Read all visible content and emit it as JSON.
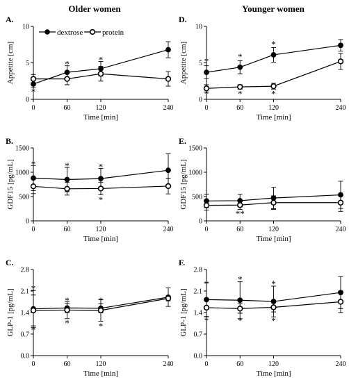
{
  "columns": [
    "Older women",
    "Younger women"
  ],
  "legend": {
    "items": [
      "dextrose",
      "protein"
    ]
  },
  "chart_data": [
    {
      "panel": "A.",
      "type": "line",
      "ylabel": "Appetite [cm]",
      "xlabel": "Time [min]",
      "x": [
        0,
        60,
        120,
        240
      ],
      "x_ticks": [
        "0",
        "60",
        "120",
        "240"
      ],
      "ylim": [
        0,
        10
      ],
      "y_ticks": [
        "0",
        "5",
        "10"
      ],
      "series": [
        {
          "name": "dextrose",
          "marker": "filled",
          "values": [
            2.1,
            3.7,
            4.2,
            6.8
          ],
          "errors": [
            0.5,
            0.9,
            1.0,
            1.1
          ]
        },
        {
          "name": "protein",
          "marker": "open",
          "values": [
            2.8,
            2.8,
            3.5,
            2.8
          ],
          "errors": [
            0.6,
            0.8,
            1.0,
            1.0
          ]
        }
      ],
      "annotations": [
        {
          "text": "*",
          "x": 0,
          "y": 1.1
        },
        {
          "text": "*",
          "x": 60,
          "y": 4.9
        },
        {
          "text": "*",
          "x": 120,
          "y": 5.5
        }
      ]
    },
    {
      "panel": "B.",
      "type": "line",
      "ylabel": "GDF15 [pg/mL]",
      "xlabel": "Time [min]",
      "x": [
        0,
        60,
        120,
        240
      ],
      "x_ticks": [
        "0",
        "60",
        "120",
        "240"
      ],
      "ylim": [
        0,
        1500
      ],
      "y_ticks": [
        "0",
        "500",
        "1000",
        "1500"
      ],
      "series": [
        {
          "name": "dextrose",
          "marker": "filled",
          "values": [
            880,
            850,
            870,
            1040
          ],
          "errors": [
            260,
            250,
            210,
            340
          ]
        },
        {
          "name": "protein",
          "marker": "open",
          "values": [
            710,
            660,
            665,
            715
          ],
          "errors": [
            150,
            130,
            130,
            160
          ]
        }
      ],
      "annotations": [
        {
          "text": "*",
          "x": 0,
          "y": 1180
        },
        {
          "text": "*",
          "x": 60,
          "y": 1140
        },
        {
          "text": "*",
          "x": 120,
          "y": 1120
        },
        {
          "text": "*",
          "x": 120,
          "y": 440
        }
      ]
    },
    {
      "panel": "C.",
      "type": "line",
      "ylabel": "GLP-1 [pg/mL]",
      "xlabel": "Time [min]",
      "x": [
        0,
        60,
        120,
        240
      ],
      "x_ticks": [
        "0",
        "60",
        "120",
        "240"
      ],
      "ylim": [
        0,
        2.8
      ],
      "y_ticks": [
        "0.0",
        "0.7",
        "1.4",
        "2.1",
        "2.8"
      ],
      "series": [
        {
          "name": "dextrose",
          "marker": "filled",
          "values": [
            1.52,
            1.55,
            1.54,
            1.9
          ],
          "errors": [
            0.6,
            0.15,
            0.15,
            0.3
          ]
        },
        {
          "name": "protein",
          "marker": "open",
          "values": [
            1.47,
            1.48,
            1.47,
            1.86
          ],
          "errors": [
            0.5,
            0.28,
            0.35,
            0.08
          ]
        }
      ],
      "annotations": [
        {
          "text": "*",
          "x": 0,
          "y": 2.2
        },
        {
          "text": "*",
          "x": 0,
          "y": 0.85
        },
        {
          "text": "*",
          "x": 60,
          "y": 1.81
        },
        {
          "text": "*",
          "x": 60,
          "y": 1.07
        },
        {
          "text": "*",
          "x": 120,
          "y": 1.81
        },
        {
          "text": "*",
          "x": 120,
          "y": 0.97
        }
      ]
    },
    {
      "panel": "D.",
      "type": "line",
      "ylabel": "Appetite [cm]",
      "xlabel": "Time [min]",
      "x": [
        0,
        60,
        120,
        240
      ],
      "x_ticks": [
        "0",
        "60",
        "120",
        "240"
      ],
      "ylim": [
        0,
        10
      ],
      "y_ticks": [
        "0",
        "5",
        "10"
      ],
      "series": [
        {
          "name": "dextrose",
          "marker": "filled",
          "values": [
            3.7,
            4.4,
            6.1,
            7.4
          ],
          "errors": [
            0.9,
            0.9,
            1.0,
            0.8
          ]
        },
        {
          "name": "protein",
          "marker": "open",
          "values": [
            1.5,
            1.7,
            1.8,
            5.2
          ],
          "errors": [
            0.5,
            0.3,
            0.4,
            1.1
          ]
        }
      ],
      "annotations": [
        {
          "text": "*",
          "x": 0,
          "y": 5.3
        },
        {
          "text": "*",
          "x": 0,
          "y": 0.8
        },
        {
          "text": "*",
          "x": 60,
          "y": 5.9
        },
        {
          "text": "*",
          "x": 60,
          "y": 0.8
        },
        {
          "text": "*",
          "x": 120,
          "y": 7.6
        },
        {
          "text": "*",
          "x": 120,
          "y": 0.8
        }
      ]
    },
    {
      "panel": "E.",
      "type": "line",
      "ylabel": "GDF15 [pg/mL]",
      "xlabel": "Time [min]",
      "x": [
        0,
        60,
        120,
        240
      ],
      "x_ticks": [
        "0",
        "60",
        "120",
        "240"
      ],
      "ylim": [
        0,
        1500
      ],
      "y_ticks": [
        "0",
        "500",
        "1000",
        "1500"
      ],
      "series": [
        {
          "name": "dextrose",
          "marker": "filled",
          "values": [
            410,
            415,
            470,
            535
          ],
          "errors": [
            140,
            130,
            220,
            280
          ]
        },
        {
          "name": "protein",
          "marker": "open",
          "values": [
            320,
            325,
            375,
            375
          ],
          "errors": [
            100,
            90,
            140,
            180
          ]
        }
      ],
      "annotations": [
        {
          "text": "**",
          "x": 60,
          "y": 160
        }
      ]
    },
    {
      "panel": "F.",
      "type": "line",
      "ylabel": "GLP-1 [pg/mL]",
      "xlabel": "Time [min]",
      "x": [
        0,
        60,
        120,
        240
      ],
      "x_ticks": [
        "0",
        "60",
        "120",
        "240"
      ],
      "ylim": [
        0,
        2.8
      ],
      "y_ticks": [
        "0.0",
        "0.7",
        "1.4",
        "2.1",
        "2.8"
      ],
      "series": [
        {
          "name": "dextrose",
          "marker": "filled",
          "values": [
            1.82,
            1.8,
            1.76,
            2.05
          ],
          "errors": [
            0.55,
            0.6,
            0.5,
            0.52
          ]
        },
        {
          "name": "protein",
          "marker": "open",
          "values": [
            1.56,
            1.53,
            1.57,
            1.75
          ],
          "errors": [
            0.3,
            0.15,
            0.15,
            0.35
          ]
        }
      ],
      "annotations": [
        {
          "text": "*",
          "x": 0,
          "y": 2.35
        },
        {
          "text": "*",
          "x": 0,
          "y": 1.15
        },
        {
          "text": "*",
          "x": 60,
          "y": 2.5
        },
        {
          "text": "*",
          "x": 60,
          "y": 1.15
        },
        {
          "text": "*",
          "x": 120,
          "y": 2.35
        },
        {
          "text": "*",
          "x": 120,
          "y": 1.15
        }
      ]
    }
  ]
}
